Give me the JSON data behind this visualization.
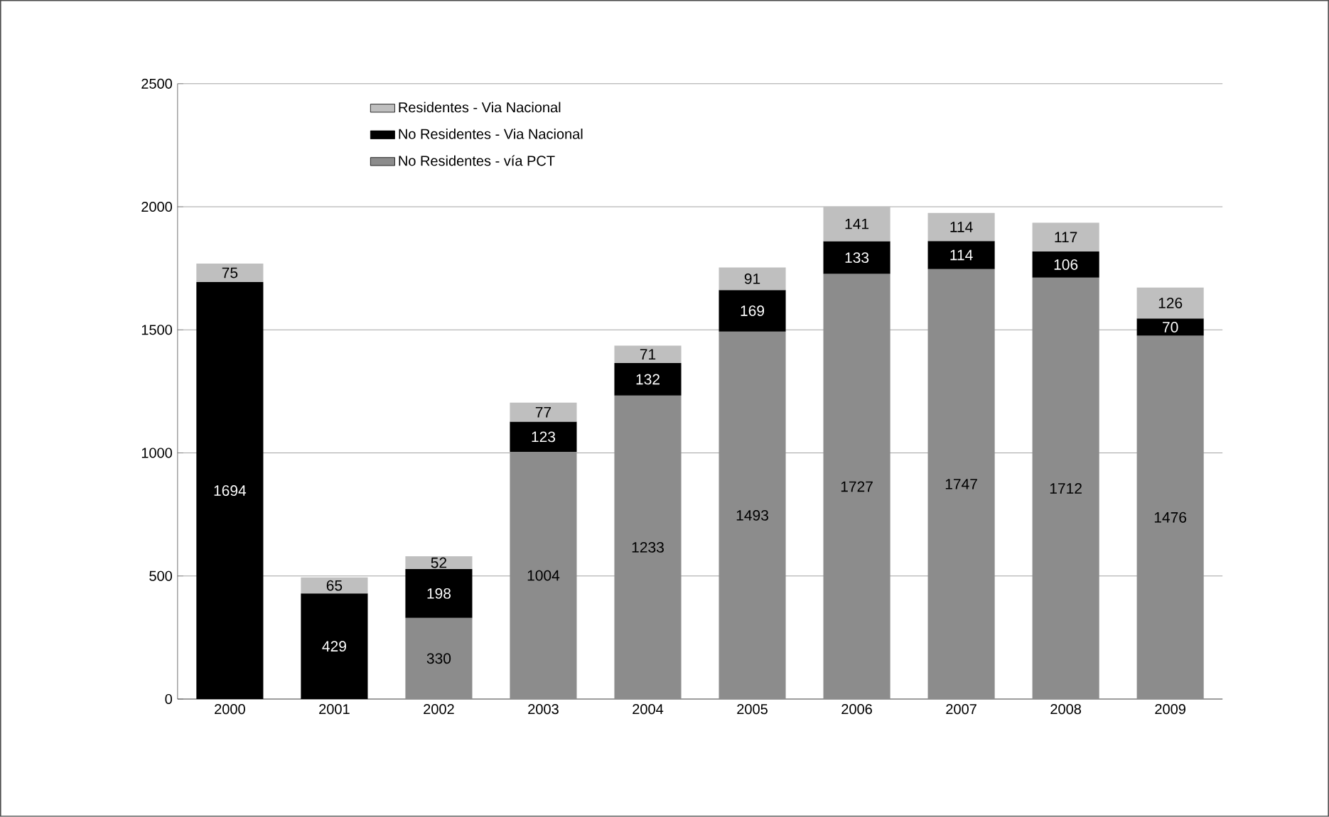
{
  "chart_data": {
    "type": "bar",
    "stacked": true,
    "data_labels": true,
    "grid": "y",
    "legend": "top left",
    "categories": [
      "2000",
      "2001",
      "2002",
      "2003",
      "2004",
      "2005",
      "2006",
      "2007",
      "2008",
      "2009"
    ],
    "ylim": [
      0,
      2500
    ],
    "yticks": [
      0,
      500,
      1000,
      1500,
      2000,
      2500
    ],
    "series": [
      {
        "name": "No Residentes - vía PCT",
        "color": "#8c8c8c",
        "values": [
          null,
          null,
          330,
          1004,
          1233,
          1493,
          1727,
          1747,
          1712,
          1476
        ]
      },
      {
        "name": "No Residentes - Via Nacional",
        "color": "#000000",
        "values": [
          1694,
          429,
          198,
          123,
          132,
          169,
          133,
          114,
          106,
          70
        ]
      },
      {
        "name": "Residentes - Via Nacional",
        "color": "#bfbfbf",
        "values": [
          75,
          65,
          52,
          77,
          71,
          91,
          141,
          114,
          117,
          126
        ]
      }
    ]
  }
}
